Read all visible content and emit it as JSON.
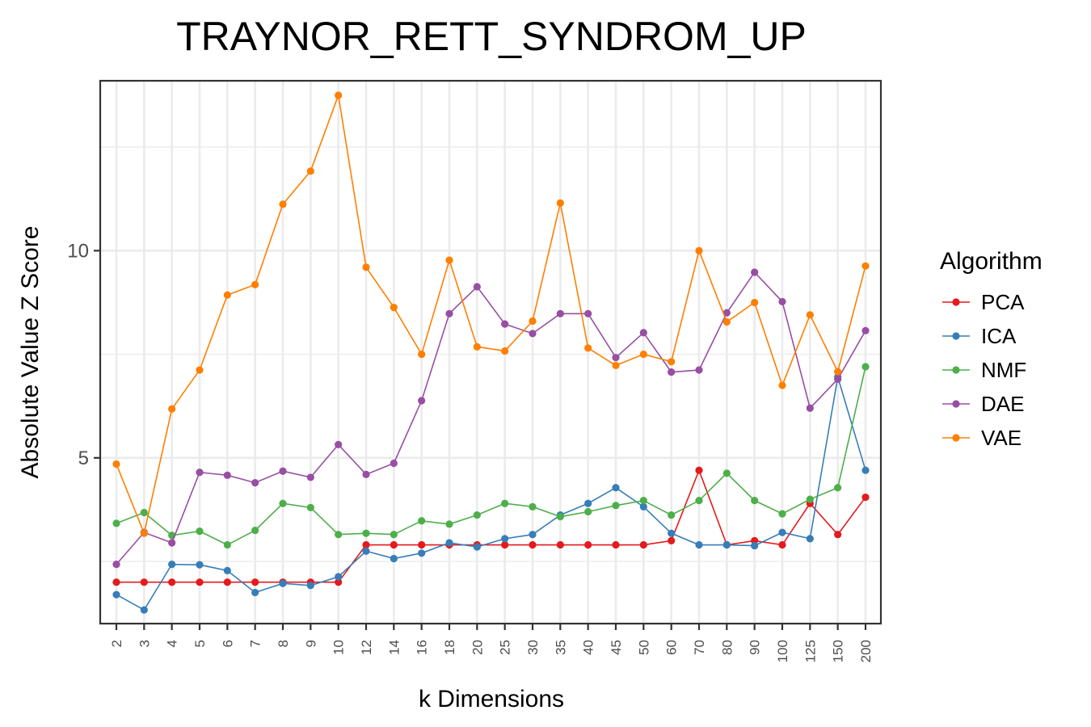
{
  "chart_data": {
    "type": "line",
    "title": "TRAYNOR_RETT_SYNDROM_UP",
    "xlabel": "k Dimensions",
    "ylabel": "Absolute Value Z Score",
    "categories": [
      "2",
      "3",
      "4",
      "5",
      "6",
      "7",
      "8",
      "9",
      "10",
      "12",
      "14",
      "16",
      "18",
      "20",
      "25",
      "30",
      "35",
      "40",
      "45",
      "50",
      "60",
      "70",
      "80",
      "90",
      "100",
      "125",
      "150",
      "200"
    ],
    "ylim": [
      1.0,
      14.1
    ],
    "yticks": [
      5,
      10
    ],
    "grid": true,
    "legend_title": "Algorithm",
    "legend_position": "right",
    "series": [
      {
        "name": "PCA",
        "color": "#E41A1C",
        "values": [
          2.0,
          2.0,
          2.0,
          2.0,
          2.0,
          2.0,
          2.0,
          2.0,
          2.0,
          2.9,
          2.9,
          2.9,
          2.9,
          2.9,
          2.9,
          2.9,
          2.9,
          2.9,
          2.9,
          2.9,
          3.0,
          4.7,
          2.9,
          3.0,
          2.9,
          3.9,
          3.15,
          4.05
        ]
      },
      {
        "name": "ICA",
        "color": "#377EB8",
        "values": [
          1.7,
          1.33,
          2.43,
          2.42,
          2.28,
          1.75,
          1.97,
          1.92,
          2.13,
          2.75,
          2.57,
          2.7,
          2.95,
          2.85,
          3.05,
          3.15,
          3.62,
          3.9,
          4.28,
          3.82,
          3.18,
          2.9,
          2.9,
          2.88,
          3.2,
          3.05,
          6.95,
          4.7
        ]
      },
      {
        "name": "NMF",
        "color": "#4DAF4A",
        "values": [
          3.42,
          3.68,
          3.13,
          3.23,
          2.9,
          3.25,
          3.9,
          3.8,
          3.15,
          3.18,
          3.15,
          3.48,
          3.4,
          3.62,
          3.9,
          3.82,
          3.58,
          3.7,
          3.85,
          3.97,
          3.62,
          3.97,
          4.63,
          3.97,
          3.65,
          4.0,
          4.28,
          7.2
        ]
      },
      {
        "name": "DAE",
        "color": "#984EA3",
        "values": [
          2.43,
          3.2,
          2.95,
          4.65,
          4.58,
          4.4,
          4.68,
          4.53,
          5.32,
          4.6,
          4.87,
          6.38,
          8.48,
          9.13,
          8.23,
          8.0,
          8.48,
          8.48,
          7.42,
          8.02,
          7.07,
          7.12,
          8.5,
          9.48,
          8.77,
          6.2,
          6.9,
          8.07
        ]
      },
      {
        "name": "VAE",
        "color": "#FF7F00",
        "values": [
          4.85,
          3.18,
          6.18,
          7.12,
          8.93,
          9.18,
          11.12,
          11.92,
          13.75,
          9.6,
          8.63,
          7.5,
          9.77,
          7.68,
          7.58,
          8.3,
          11.15,
          7.65,
          7.23,
          7.5,
          7.32,
          10.0,
          8.28,
          8.75,
          6.75,
          8.45,
          7.08,
          9.63
        ]
      }
    ]
  }
}
